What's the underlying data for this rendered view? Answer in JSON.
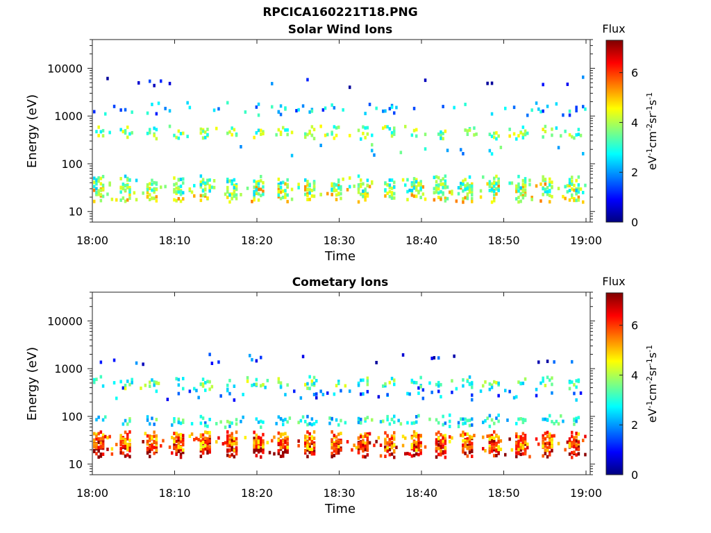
{
  "figure": {
    "filename": "RPCICA160221T18.PNG"
  },
  "chart_data": [
    {
      "type": "heatmap",
      "title": "Solar Wind Ions",
      "xlabel": "Time",
      "ylabel": "Energy (eV)",
      "x_ticks": [
        "18:00",
        "18:10",
        "18:20",
        "18:30",
        "18:40",
        "18:50",
        "19:00"
      ],
      "x_range": [
        "18:00",
        "19:00"
      ],
      "y_ticks": [
        "10",
        "100",
        "1000",
        "10000"
      ],
      "y_scale": "log",
      "y_range": [
        6,
        40000
      ],
      "colorbar": {
        "title": "Flux",
        "ticks": [
          "0",
          "2",
          "4",
          "6"
        ],
        "range": [
          0,
          7.3
        ],
        "unit_label": "eV-1cm-2sr-1s-1",
        "colormap": "jet"
      },
      "energy_bands": [
        {
          "energy_eV": 25,
          "flux": 4.4,
          "character": "dense low-energy band"
        },
        {
          "energy_eV": 35,
          "flux": 3.4,
          "character": "dense low-energy band"
        },
        {
          "energy_eV": 200,
          "flux": 2.6,
          "character": "sparse"
        },
        {
          "energy_eV": 450,
          "flux": 3.6,
          "character": "periodic bursts"
        },
        {
          "energy_eV": 1400,
          "flux": 2.2,
          "character": "scattered"
        },
        {
          "energy_eV": 5000,
          "flux": 1.0,
          "character": "very sparse"
        }
      ]
    },
    {
      "type": "heatmap",
      "title": "Cometary Ions",
      "xlabel": "Time",
      "ylabel": "Energy (eV)",
      "x_ticks": [
        "18:00",
        "18:10",
        "18:20",
        "18:30",
        "18:40",
        "18:50",
        "19:00"
      ],
      "x_range": [
        "18:00",
        "19:00"
      ],
      "y_ticks": [
        "10",
        "100",
        "1000",
        "10000"
      ],
      "y_scale": "log",
      "y_range": [
        6,
        40000
      ],
      "colorbar": {
        "title": "Flux",
        "ticks": [
          "0",
          "2",
          "4",
          "6"
        ],
        "range": [
          0,
          7.3
        ],
        "unit_label": "eV-1cm-2sr-1s-1",
        "colormap": "jet"
      },
      "energy_bands": [
        {
          "energy_eV": 22,
          "flux": 6.8,
          "character": "intense periodic bursts"
        },
        {
          "energy_eV": 30,
          "flux": 5.5,
          "character": "intense periodic bursts"
        },
        {
          "energy_eV": 80,
          "flux": 2.8,
          "character": "moderate"
        },
        {
          "energy_eV": 300,
          "flux": 1.8,
          "character": "scattered"
        },
        {
          "energy_eV": 500,
          "flux": 3.4,
          "character": "periodic"
        },
        {
          "energy_eV": 1500,
          "flux": 1.0,
          "character": "very sparse"
        }
      ]
    }
  ]
}
